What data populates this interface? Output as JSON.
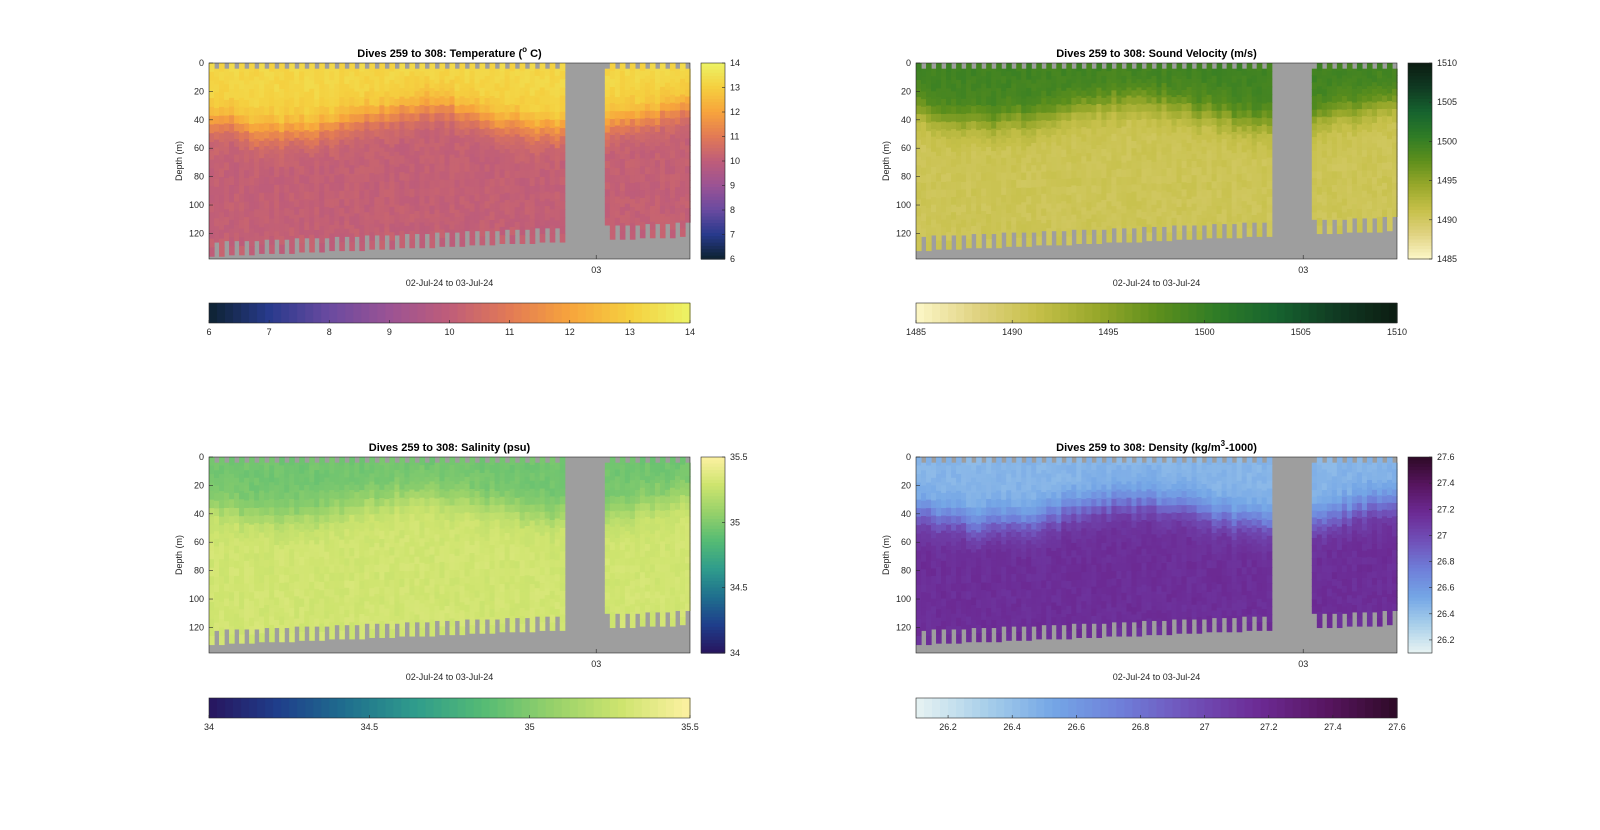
{
  "colors": {
    "masked": "#9e9e9e",
    "temperature_cmap": [
      "#0d2231",
      "#283a8c",
      "#6a4aa0",
      "#9b5394",
      "#bf5d79",
      "#e27a55",
      "#f7a43c",
      "#f5cf3f",
      "#ecf366"
    ],
    "sound_cmap": [
      "#fdf7c8",
      "#e0d382",
      "#c6c049",
      "#98a82b",
      "#5e8f1c",
      "#2f7c26",
      "#16632f",
      "#103a22",
      "#0c1c12"
    ],
    "salinity_cmap": [
      "#27155e",
      "#1f3e8b",
      "#1f6f8e",
      "#2f9c8c",
      "#55bb74",
      "#96d16a",
      "#cee46e",
      "#fdf1a2"
    ],
    "density_cmap": [
      "#e8f3f2",
      "#a9d0ea",
      "#74a6e6",
      "#6f7ed9",
      "#7050b8",
      "#6c2a94",
      "#57155f",
      "#2e0a26"
    ]
  },
  "chart_data": [
    {
      "type": "heatmap",
      "title_prefix": "Dives 259 to 308: Temperature (",
      "title_sup": "o",
      "title_suffix": " C)",
      "ylabel": "Depth (m)",
      "xlabel": "02-Jul-24 to 03-Jul-24",
      "xtick_labels": [
        "03"
      ],
      "xtick_value": 0.805,
      "yticks": [
        0,
        20,
        40,
        60,
        80,
        100,
        120
      ],
      "ylim": [
        0,
        138
      ],
      "colorbar_vertical_ticks": [
        "14",
        "13",
        "12",
        "11",
        "10",
        "9",
        "8",
        "7",
        "6"
      ],
      "colorbar_horizontal_ticks": [
        "6",
        "7",
        "8",
        "9",
        "10",
        "11",
        "12",
        "13",
        "14"
      ],
      "clim": [
        6,
        14
      ],
      "cmap": "temperature_cmap",
      "gap_range": [
        0.74,
        0.82
      ],
      "profile": {
        "surface": 13.2,
        "layer_depth": 40,
        "deep": 10.1
      }
    },
    {
      "type": "heatmap",
      "title_prefix": "Dives 259 to 308: Sound Velocity (m/s)",
      "title_sup": "",
      "title_suffix": "",
      "ylabel": "Depth (m)",
      "xlabel": "02-Jul-24 to 03-Jul-24",
      "xtick_labels": [
        "03"
      ],
      "xtick_value": 0.805,
      "yticks": [
        0,
        20,
        40,
        60,
        80,
        100,
        120
      ],
      "ylim": [
        0,
        138
      ],
      "colorbar_vertical_ticks": [
        "1510",
        "1505",
        "1500",
        "1495",
        "1490",
        "1485"
      ],
      "colorbar_horizontal_ticks": [
        "1485",
        "1490",
        "1495",
        "1500",
        "1505",
        "1510"
      ],
      "clim": [
        1485,
        1510
      ],
      "cmap": "sound_cmap",
      "gap_range": [
        0.74,
        0.82
      ],
      "profile": {
        "surface": 1499.5,
        "layer_depth": 35,
        "deep": 1490.5
      }
    },
    {
      "type": "heatmap",
      "title_prefix": "Dives 259 to 308: Salinity (psu)",
      "title_sup": "",
      "title_suffix": "",
      "ylabel": "Depth (m)",
      "xlabel": "02-Jul-24 to 03-Jul-24",
      "xtick_labels": [
        "03"
      ],
      "xtick_value": 0.805,
      "yticks": [
        0,
        20,
        40,
        60,
        80,
        100,
        120
      ],
      "ylim": [
        0,
        138
      ],
      "colorbar_vertical_ticks": [
        "35.5",
        "35",
        "34.5",
        "34"
      ],
      "colorbar_horizontal_ticks": [
        "34",
        "34.5",
        "35",
        "35.5"
      ],
      "clim": [
        34,
        35.5
      ],
      "cmap": "salinity_cmap",
      "gap_range": [
        0.74,
        0.82
      ],
      "profile": {
        "surface": 34.95,
        "layer_depth": 35,
        "deep": 35.3
      }
    },
    {
      "type": "heatmap",
      "title_prefix": "Dives 259 to 308: Density (kg/m",
      "title_sup": "3",
      "title_suffix": "-1000)",
      "ylabel": "Depth (m)",
      "xlabel": "02-Jul-24 to 03-Jul-24",
      "xtick_labels": [
        "03"
      ],
      "xtick_value": 0.805,
      "yticks": [
        0,
        20,
        40,
        60,
        80,
        100,
        120
      ],
      "ylim": [
        0,
        138
      ],
      "colorbar_vertical_ticks": [
        "27.6",
        "27.4",
        "27.2",
        "27",
        "26.8",
        "26.6",
        "26.4",
        "26.2"
      ],
      "colorbar_horizontal_ticks": [
        "26.2",
        "26.4",
        "26.6",
        "26.8",
        "27",
        "27.2",
        "27.4",
        "27.6"
      ],
      "clim": [
        26.1,
        27.6
      ],
      "cmap": "density_cmap",
      "gap_range": [
        0.74,
        0.82
      ],
      "profile": {
        "surface": 26.45,
        "layer_depth": 40,
        "deep": 27.15
      }
    }
  ]
}
